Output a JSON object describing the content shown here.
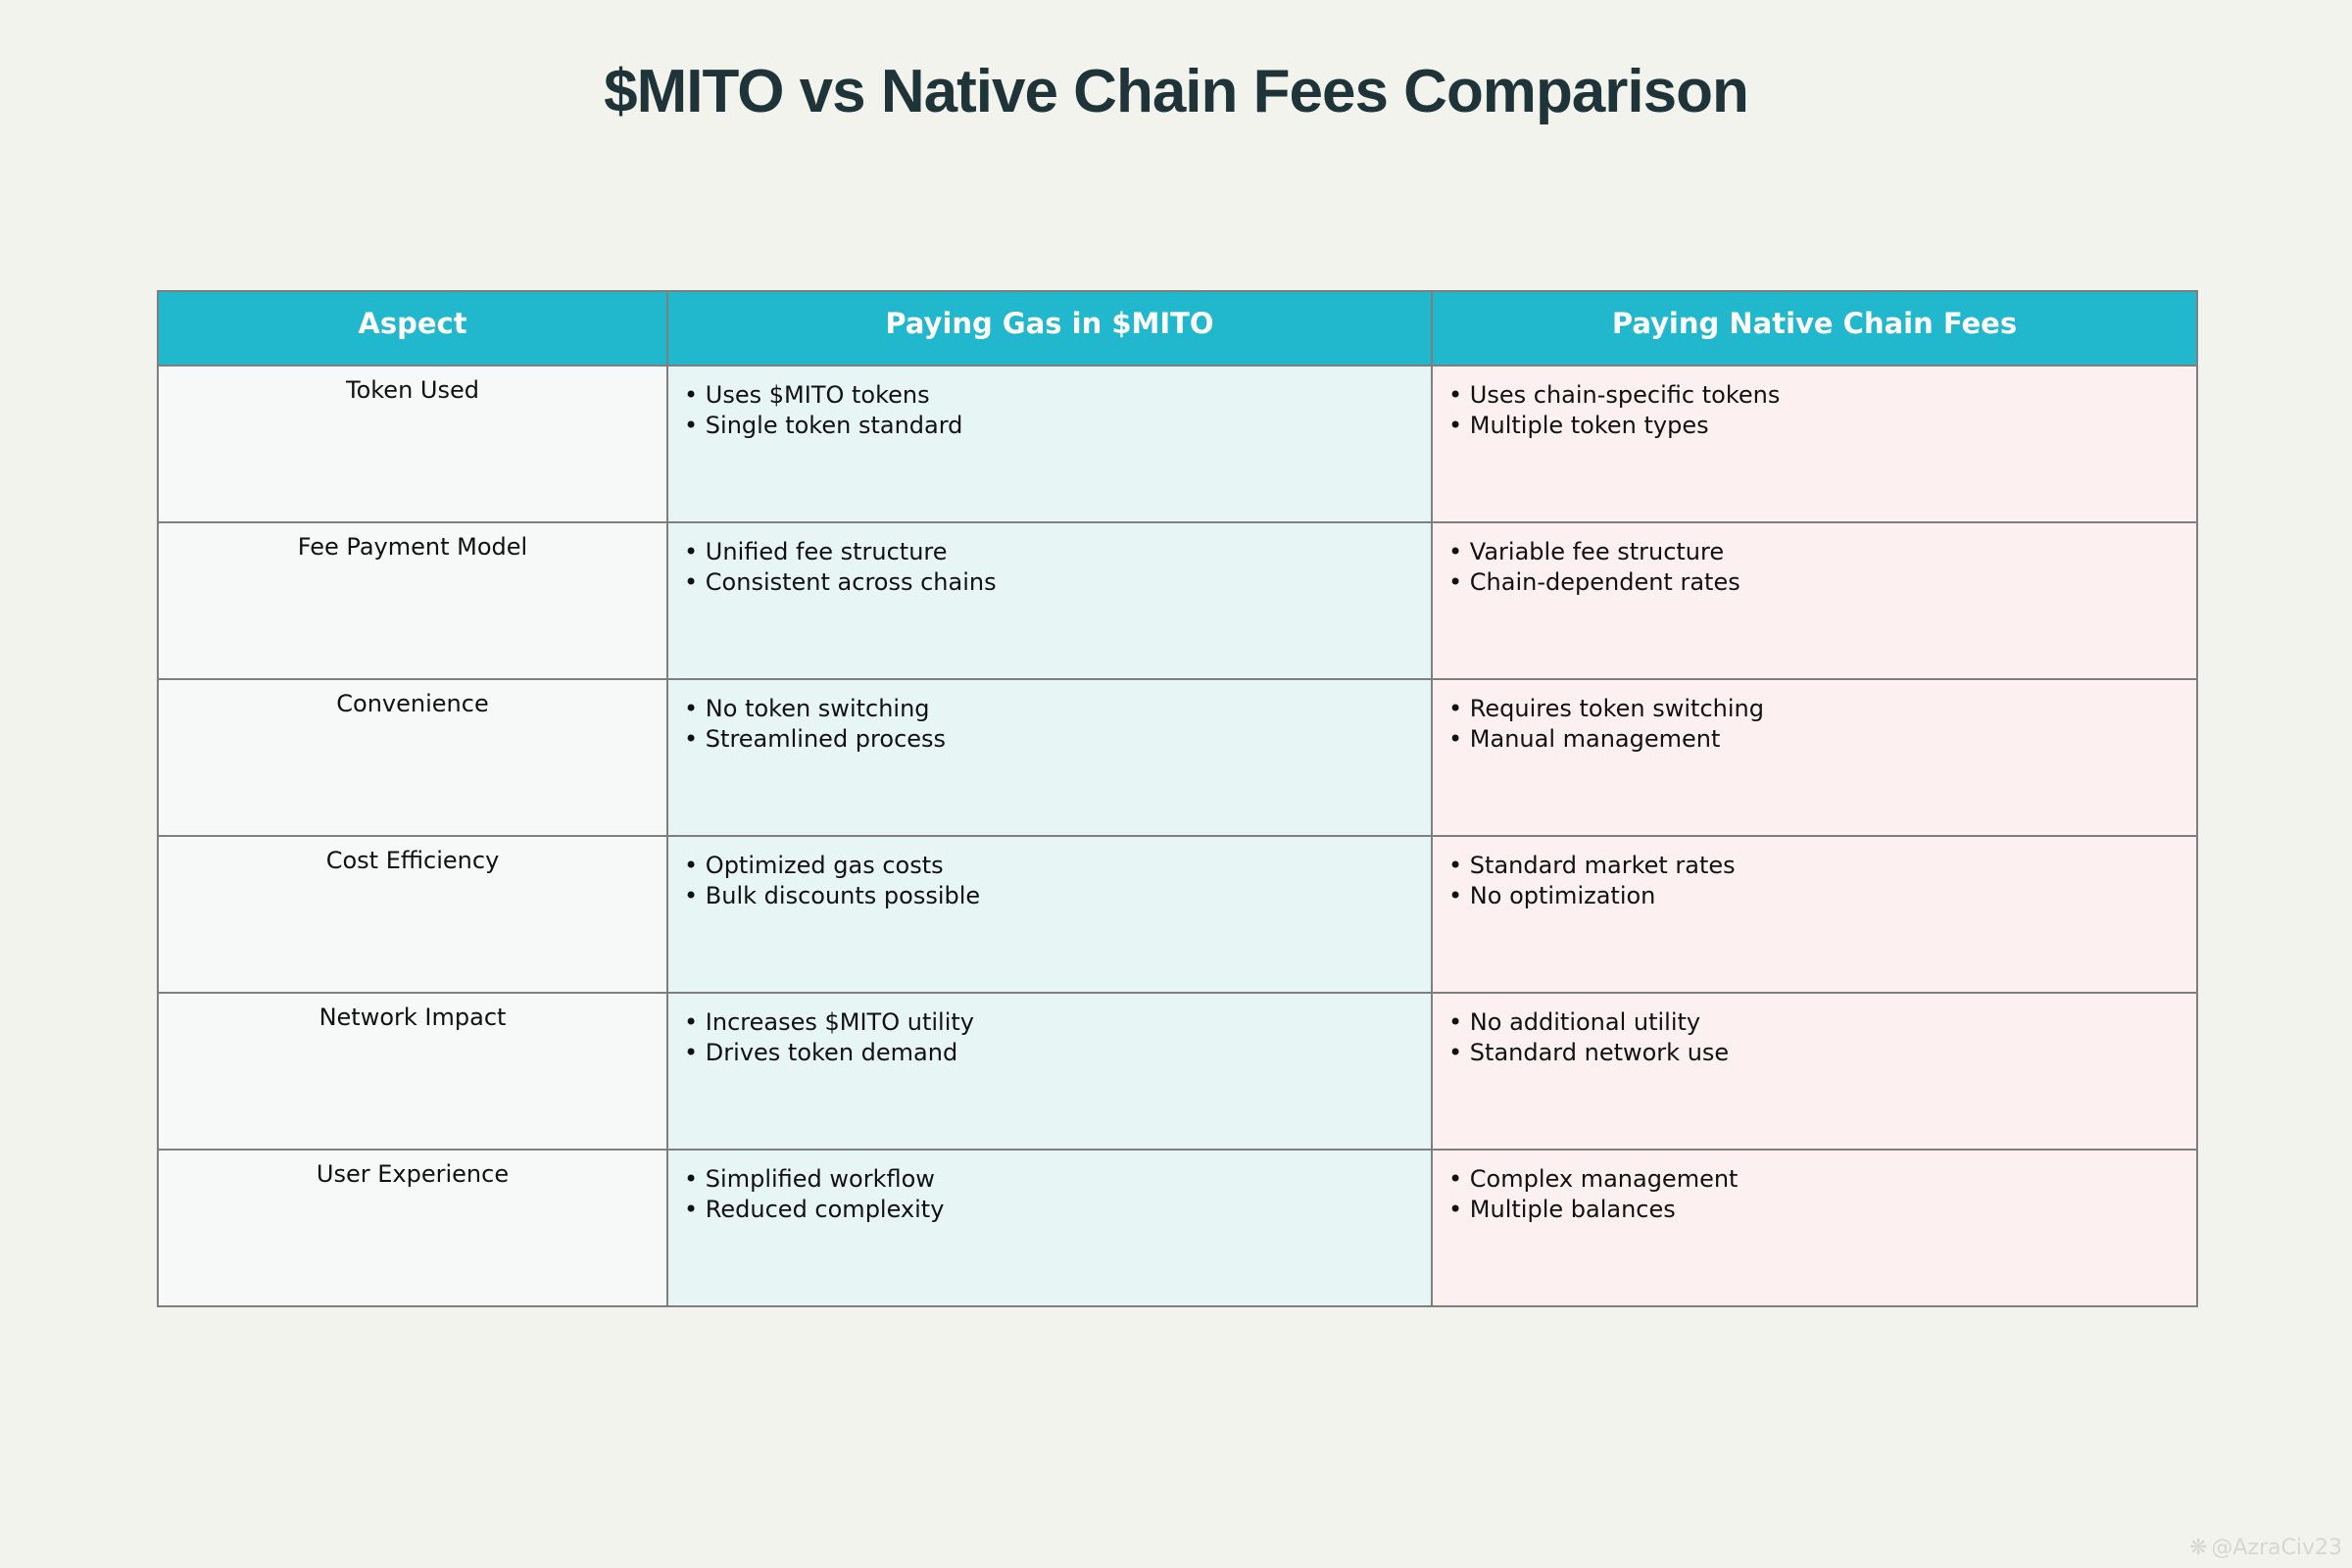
{
  "chart_data": {
    "type": "table",
    "title": "$MITO vs Native Chain Fees Comparison",
    "columns": [
      "Aspect",
      "Paying Gas in $MITO",
      "Paying Native Chain Fees"
    ],
    "rows": [
      {
        "aspect": "Token Used",
        "mito": [
          "Uses $MITO tokens",
          "Single token standard"
        ],
        "native": [
          "Uses chain-specific tokens",
          "Multiple token types"
        ]
      },
      {
        "aspect": "Fee Payment Model",
        "mito": [
          "Unified fee structure",
          "Consistent across chains"
        ],
        "native": [
          "Variable fee structure",
          "Chain-dependent rates"
        ]
      },
      {
        "aspect": "Convenience",
        "mito": [
          "No token switching",
          "Streamlined process"
        ],
        "native": [
          "Requires token switching",
          "Manual management"
        ]
      },
      {
        "aspect": "Cost Efficiency",
        "mito": [
          "Optimized gas costs",
          "Bulk discounts possible"
        ],
        "native": [
          "Standard market rates",
          "No optimization"
        ]
      },
      {
        "aspect": "Network Impact",
        "mito": [
          "Increases $MITO utility",
          "Drives token demand"
        ],
        "native": [
          "No additional utility",
          "Standard network use"
        ]
      },
      {
        "aspect": "User Experience",
        "mito": [
          "Simplified workflow",
          "Reduced complexity"
        ],
        "native": [
          "Complex management",
          "Multiple balances"
        ]
      }
    ]
  },
  "colors": {
    "header": "#21b7cd",
    "aspect_cell": "#f7f8f8",
    "mito_cell": "#e7f5f5",
    "native_cell": "#fcf1f0",
    "background": "#f3f3ee"
  },
  "watermark": {
    "icon": "logo-icon",
    "text": "@AzraCiv23"
  }
}
